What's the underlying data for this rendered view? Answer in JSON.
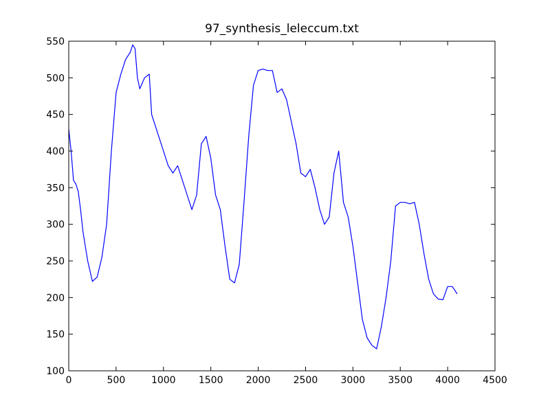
{
  "chart_data": {
    "type": "line",
    "title": "97_synthesis_leleccum.txt",
    "x": [
      0,
      25,
      50,
      75,
      100,
      125,
      150,
      200,
      250,
      300,
      350,
      400,
      450,
      500,
      550,
      600,
      650,
      675,
      700,
      725,
      750,
      800,
      850,
      875,
      900,
      950,
      1000,
      1050,
      1100,
      1150,
      1200,
      1250,
      1300,
      1350,
      1400,
      1450,
      1500,
      1550,
      1600,
      1650,
      1700,
      1750,
      1800,
      1850,
      1900,
      1950,
      2000,
      2050,
      2100,
      2150,
      2200,
      2250,
      2300,
      2350,
      2400,
      2450,
      2500,
      2550,
      2600,
      2650,
      2700,
      2750,
      2800,
      2850,
      2900,
      2950,
      3000,
      3050,
      3100,
      3150,
      3200,
      3250,
      3300,
      3350,
      3400,
      3450,
      3500,
      3550,
      3600,
      3650,
      3700,
      3750,
      3800,
      3850,
      3900,
      3950,
      4000,
      4050,
      4100
    ],
    "values": [
      430,
      400,
      360,
      355,
      345,
      320,
      290,
      250,
      222,
      228,
      255,
      300,
      400,
      480,
      505,
      525,
      535,
      545,
      540,
      500,
      485,
      500,
      505,
      450,
      440,
      420,
      400,
      380,
      370,
      380,
      360,
      340,
      320,
      340,
      410,
      420,
      390,
      340,
      320,
      270,
      225,
      220,
      245,
      330,
      420,
      490,
      510,
      512,
      510,
      510,
      480,
      485,
      470,
      440,
      410,
      370,
      365,
      375,
      350,
      320,
      300,
      310,
      370,
      400,
      330,
      310,
      270,
      220,
      170,
      145,
      135,
      130,
      160,
      200,
      250,
      325,
      330,
      330,
      328,
      330,
      300,
      260,
      225,
      205,
      198,
      197,
      215,
      215,
      205
    ],
    "color": "#0000ff",
    "xlim": [
      0,
      4500
    ],
    "xticks": [
      0,
      500,
      1000,
      1500,
      2000,
      2500,
      3000,
      3500,
      4000,
      4500
    ],
    "ylim": [
      100,
      550
    ],
    "yticks": [
      100,
      150,
      200,
      250,
      300,
      350,
      400,
      450,
      500,
      550
    ]
  }
}
